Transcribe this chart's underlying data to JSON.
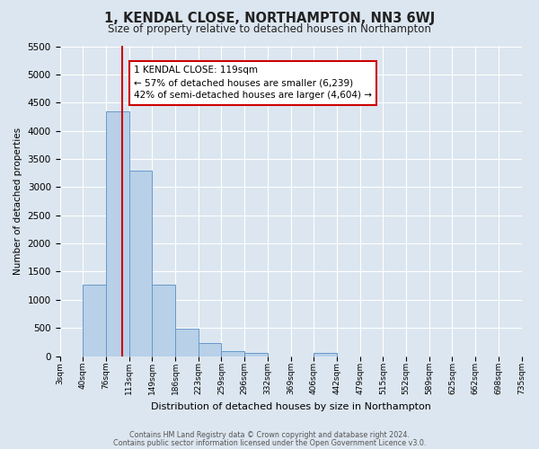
{
  "title": "1, KENDAL CLOSE, NORTHAMPTON, NN3 6WJ",
  "subtitle": "Size of property relative to detached houses in Northampton",
  "xlabel": "Distribution of detached houses by size in Northampton",
  "ylabel": "Number of detached properties",
  "bar_heights": [
    0,
    1270,
    4350,
    3300,
    1270,
    480,
    230,
    90,
    60,
    0,
    0,
    60,
    0,
    0,
    0,
    0,
    0,
    0,
    0,
    0
  ],
  "tick_labels": [
    "3sqm",
    "40sqm",
    "76sqm",
    "113sqm",
    "149sqm",
    "186sqm",
    "223sqm",
    "259sqm",
    "296sqm",
    "332sqm",
    "369sqm",
    "406sqm",
    "442sqm",
    "479sqm",
    "515sqm",
    "552sqm",
    "589sqm",
    "625sqm",
    "662sqm",
    "698sqm",
    "735sqm"
  ],
  "n_bins": 20,
  "property_bin": 2.7,
  "bar_color": "#b8d0e8",
  "bar_edge_color": "#6699cc",
  "line_color": "#cc0000",
  "ylim": [
    0,
    5500
  ],
  "yticks": [
    0,
    500,
    1000,
    1500,
    2000,
    2500,
    3000,
    3500,
    4000,
    4500,
    5000,
    5500
  ],
  "annotation_title": "1 KENDAL CLOSE: 119sqm",
  "annotation_line1": "← 57% of detached houses are smaller (6,239)",
  "annotation_line2": "42% of semi-detached houses are larger (4,604) →",
  "annotation_box_color": "#ffffff",
  "annotation_box_edge_color": "#cc0000",
  "footer_line1": "Contains HM Land Registry data © Crown copyright and database right 2024.",
  "footer_line2": "Contains public sector information licensed under the Open Government Licence v3.0.",
  "background_color": "#dce6f0",
  "grid_color": "#ffffff"
}
